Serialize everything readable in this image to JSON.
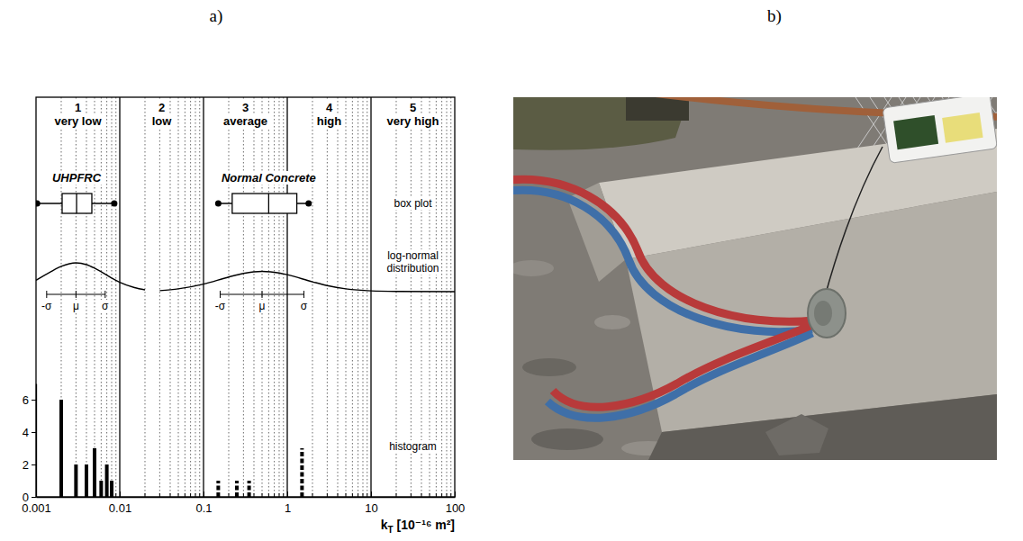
{
  "panel_labels": [
    "a)",
    "b)"
  ],
  "chart_data": {
    "type": "histogram",
    "log": "x",
    "grid": true,
    "x_label": "kT [10⁻¹⁶ m²]",
    "xlim": [
      0.001,
      100
    ],
    "xticks": [
      0.001,
      0.01,
      0.1,
      1,
      10,
      100
    ],
    "xminor_ticks": [
      0.002,
      0.003,
      0.004,
      0.005,
      0.006,
      0.007,
      0.008,
      0.009,
      0.02,
      0.03,
      0.04,
      0.05,
      0.06,
      0.07,
      0.08,
      0.09,
      0.2,
      0.3,
      0.4,
      0.5,
      0.6,
      0.7,
      0.8,
      0.9,
      2,
      3,
      4,
      5,
      6,
      7,
      8,
      9,
      20,
      30,
      40,
      50,
      60,
      70,
      80,
      90
    ],
    "ylim": [
      0,
      7
    ],
    "yticks": [
      0,
      2,
      4,
      6
    ],
    "zones": [
      {
        "number": 1,
        "label": "very low",
        "range": [
          0.001,
          0.01
        ]
      },
      {
        "number": 2,
        "label": "low",
        "range": [
          0.01,
          0.1
        ]
      },
      {
        "number": 3,
        "label": "average",
        "range": [
          0.1,
          1
        ]
      },
      {
        "number": 4,
        "label": "high",
        "range": [
          1,
          10
        ]
      },
      {
        "number": 5,
        "label": "very high",
        "range": [
          10,
          100
        ]
      }
    ],
    "series": [
      {
        "name": "UHPFRC",
        "color": "#000000",
        "line_style": "solid",
        "x": [
          0.002,
          0.003,
          0.004,
          0.005,
          0.006,
          0.007,
          0.008
        ],
        "values": [
          6,
          2,
          2,
          3,
          1,
          2,
          1
        ],
        "box": {
          "min": 0.00103,
          "q1": 0.00205,
          "median": 0.00305,
          "q3": 0.00464,
          "max": 0.0086
        },
        "distribution": {
          "x": [
            0.001,
            0.0015,
            0.002,
            0.003,
            0.004,
            0.005,
            0.006,
            0.008,
            0.01,
            0.015,
            0.02
          ],
          "density": [
            0.45,
            0.79,
            1.0,
            1.14,
            1.07,
            0.93,
            0.79,
            0.54,
            0.37,
            0.16,
            0.07
          ],
          "sigma_marks": [
            0.00134,
            0.003,
            0.0067
          ],
          "sigma_labels": [
            "-σ",
            "μ",
            "σ"
          ]
        }
      },
      {
        "name": "Normal Concrete",
        "color": "#000000",
        "line_style": "dashed",
        "x": [
          0.15,
          0.25,
          0.35,
          1.5
        ],
        "values": [
          1,
          1,
          1,
          3
        ],
        "box": {
          "min": 0.15,
          "q1": 0.22,
          "median": 0.6,
          "q3": 1.3,
          "max": 1.8
        },
        "distribution": {
          "x": [
            0.03,
            0.05,
            0.1,
            0.2,
            0.3,
            0.5,
            0.8,
            1,
            2,
            3,
            5,
            10,
            20,
            100
          ],
          "density": [
            0.04,
            0.11,
            0.3,
            0.58,
            0.72,
            0.8,
            0.74,
            0.67,
            0.39,
            0.24,
            0.11,
            0.03,
            0.01,
            0
          ],
          "sigma_marks": [
            0.158,
            0.5,
            1.58
          ],
          "sigma_labels": [
            "-σ",
            "μ",
            "σ"
          ]
        }
      }
    ],
    "annotations": {
      "box_plot": "box plot",
      "distribution": [
        "log-normal",
        "distribution"
      ],
      "histogram": "histogram"
    }
  }
}
